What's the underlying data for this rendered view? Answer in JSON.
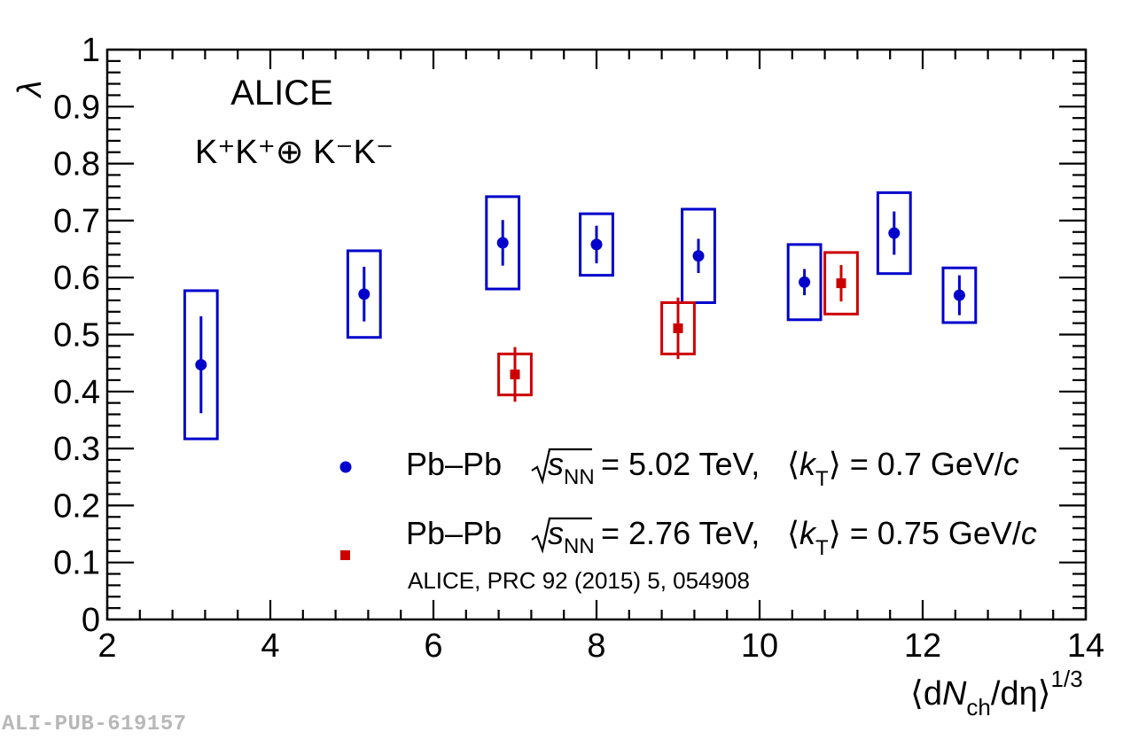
{
  "chart_data": {
    "type": "scatter",
    "experiment_label": "ALICE",
    "system_label": "K⁺K⁺⊕ K⁻K⁻",
    "xlabel": "⟨dN_ch/dη⟩^1/3",
    "ylabel": "λ",
    "xlim": [
      2,
      14
    ],
    "ylim": [
      0,
      1
    ],
    "x_ticks": [
      "2",
      "4",
      "6",
      "8",
      "10",
      "12",
      "14"
    ],
    "y_ticks": [
      "0",
      "0.1",
      "0.2",
      "0.3",
      "0.4",
      "0.5",
      "0.6",
      "0.7",
      "0.8",
      "0.9",
      "1"
    ],
    "legend_position": "bottom-right",
    "series": [
      {
        "legend_prefix": "Pb–Pb",
        "energy": "5.02 TeV",
        "kt": "0.7 GeV/",
        "marker": "circle",
        "color": "#0000cc",
        "x": [
          3.15,
          5.15,
          6.85,
          8.0,
          9.25,
          10.55,
          11.65,
          12.45
        ],
        "y": [
          0.447,
          0.571,
          0.661,
          0.658,
          0.638,
          0.592,
          0.678,
          0.569
        ],
        "stat_err": [
          0.085,
          0.048,
          0.04,
          0.033,
          0.03,
          0.023,
          0.038,
          0.035
        ],
        "sys_err": [
          0.13,
          0.076,
          0.081,
          0.054,
          0.082,
          0.066,
          0.071,
          0.048
        ],
        "sys_halfwidth": [
          0.2,
          0.2,
          0.2,
          0.2,
          0.2,
          0.2,
          0.2,
          0.2
        ]
      },
      {
        "legend_prefix": "Pb–Pb",
        "energy": "2.76 TeV",
        "kt": "0.75 GeV/",
        "reference": "ALICE, PRC 92 (2015) 5, 054908",
        "marker": "square",
        "color": "#cc0000",
        "x": [
          7.0,
          9.0,
          11.0
        ],
        "y": [
          0.43,
          0.511,
          0.59
        ],
        "stat_err": [
          0.048,
          0.054,
          0.032
        ],
        "sys_err": [
          0.036,
          0.045,
          0.054
        ],
        "sys_halfwidth": [
          0.2,
          0.2,
          0.2
        ]
      }
    ]
  },
  "footer": {
    "pub_id": "ALI-PUB-619157"
  }
}
